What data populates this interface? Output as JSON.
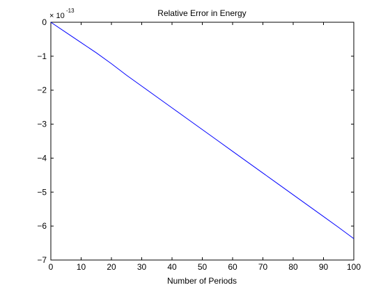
{
  "chart_data": {
    "type": "line",
    "title": "Relative Error in Energy",
    "xlabel": "Number of Periods",
    "ylabel": "",
    "xlim": [
      0,
      100
    ],
    "ylim": [
      -7,
      0
    ],
    "y_scale_multiplier": {
      "base_text": "× 10",
      "exponent": "-13"
    },
    "x_ticks": [
      0,
      10,
      20,
      30,
      40,
      50,
      60,
      70,
      80,
      90,
      100
    ],
    "x_tick_labels": [
      "0",
      "10",
      "20",
      "30",
      "40",
      "50",
      "60",
      "70",
      "80",
      "90",
      "100"
    ],
    "y_ticks": [
      0,
      -1,
      -2,
      -3,
      -4,
      -5,
      -6,
      -7
    ],
    "y_tick_labels": [
      "0",
      "−1",
      "−2",
      "−3",
      "−4",
      "−5",
      "−6",
      "−7"
    ],
    "grid": false,
    "line_color": "#0000ff",
    "series": [
      {
        "x": [
          0,
          5,
          10,
          15,
          20,
          25,
          30,
          35,
          40,
          45,
          50,
          55,
          60,
          65,
          70,
          75,
          80,
          85,
          90,
          95,
          100
        ],
        "values": [
          0,
          -0.3,
          -0.6,
          -0.9,
          -1.22,
          -1.56,
          -1.88,
          -2.2,
          -2.52,
          -2.84,
          -3.16,
          -3.48,
          -3.8,
          -4.12,
          -4.44,
          -4.76,
          -5.08,
          -5.4,
          -5.72,
          -6.04,
          -6.37
        ]
      }
    ]
  }
}
